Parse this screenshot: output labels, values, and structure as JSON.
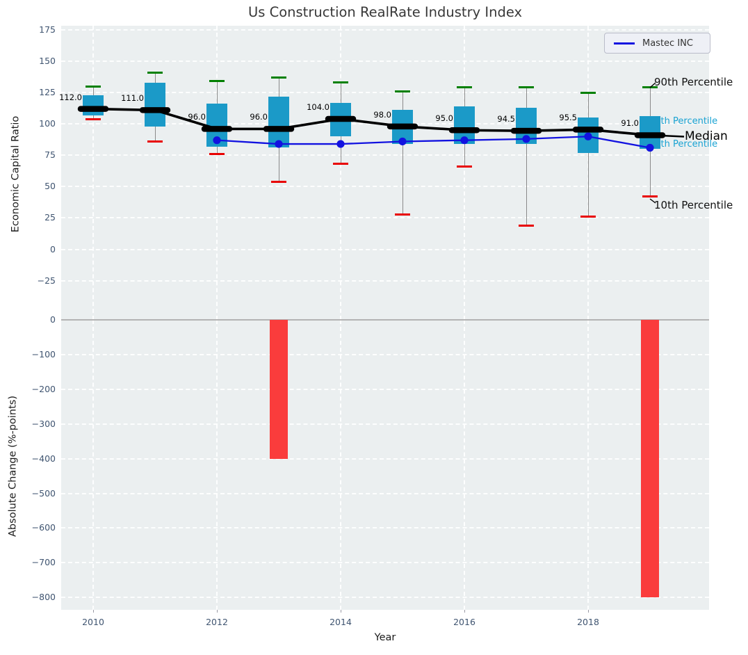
{
  "title": "Us Construction RealRate Industry Index",
  "legend": {
    "label": "Mastec INC"
  },
  "colors": {
    "box": "#1b9ac8",
    "p90_cap": "#018001",
    "p10_cap": "#e80202",
    "whisker": "#8a8a8a",
    "median_line": "#000000",
    "mastec_line": "#1212e0",
    "bar": "#fa3c3c",
    "plot_bg": "#ebeff0",
    "annotation_cyan": "#1aa3d3",
    "tick_text": "#3f5470"
  },
  "chart_data": [
    {
      "type": "boxwhisker+line",
      "title": "Us Construction RealRate Industry Index",
      "ylabel": "Economic Capital Ratio",
      "xlabel": "",
      "yticks": [
        175,
        150,
        125,
        100,
        75,
        50,
        25,
        0,
        -25
      ],
      "ylim": [
        -52,
        178
      ],
      "grid": true,
      "x": [
        2010,
        2011,
        2012,
        2013,
        2014,
        2015,
        2016,
        2017,
        2018,
        2019
      ],
      "series": [
        {
          "name": "90th Percentile",
          "values": [
            130,
            141,
            134,
            137,
            133,
            126,
            129,
            129,
            125,
            129
          ]
        },
        {
          "name": "75th Percentile",
          "values": [
            123,
            133,
            116,
            122,
            117,
            111,
            114,
            113,
            105,
            106
          ]
        },
        {
          "name": "Median",
          "values": [
            112,
            111,
            96,
            96,
            104,
            98,
            95,
            94.5,
            95.5,
            91
          ]
        },
        {
          "name": "25th Percentile",
          "values": [
            107,
            98,
            82,
            81,
            90,
            84,
            84,
            84,
            77,
            80
          ]
        },
        {
          "name": "10th Percentile",
          "values": [
            104,
            86,
            76,
            54,
            68,
            28,
            66,
            19,
            26,
            42
          ]
        },
        {
          "name": "Mastec INC",
          "x": [
            2012,
            2013,
            2014,
            2015,
            2016,
            2017,
            2018,
            2019
          ],
          "values": [
            87,
            84,
            84,
            86,
            87,
            88,
            90,
            81
          ]
        }
      ],
      "median_labels": [
        "112.0",
        "111.0",
        "96.0",
        "96.0",
        "104.0",
        "98.0",
        "95.0",
        "94.5",
        "95.5",
        "91.0"
      ],
      "annotations": [
        "90th Percentile",
        "75th Percentile",
        "Median",
        "25th Percentile",
        "10th Percentile"
      ],
      "legend_position": "upper right"
    },
    {
      "type": "bar",
      "ylabel": "Absolute Change (%-points)",
      "xlabel": "Year",
      "yticks": [
        0,
        -100,
        -200,
        -300,
        -400,
        -500,
        -600,
        -700,
        -800
      ],
      "xticks": [
        2010,
        2012,
        2014,
        2016,
        2018
      ],
      "categories": [
        2013,
        2019
      ],
      "values": [
        -400,
        -800
      ],
      "grid": true
    }
  ]
}
